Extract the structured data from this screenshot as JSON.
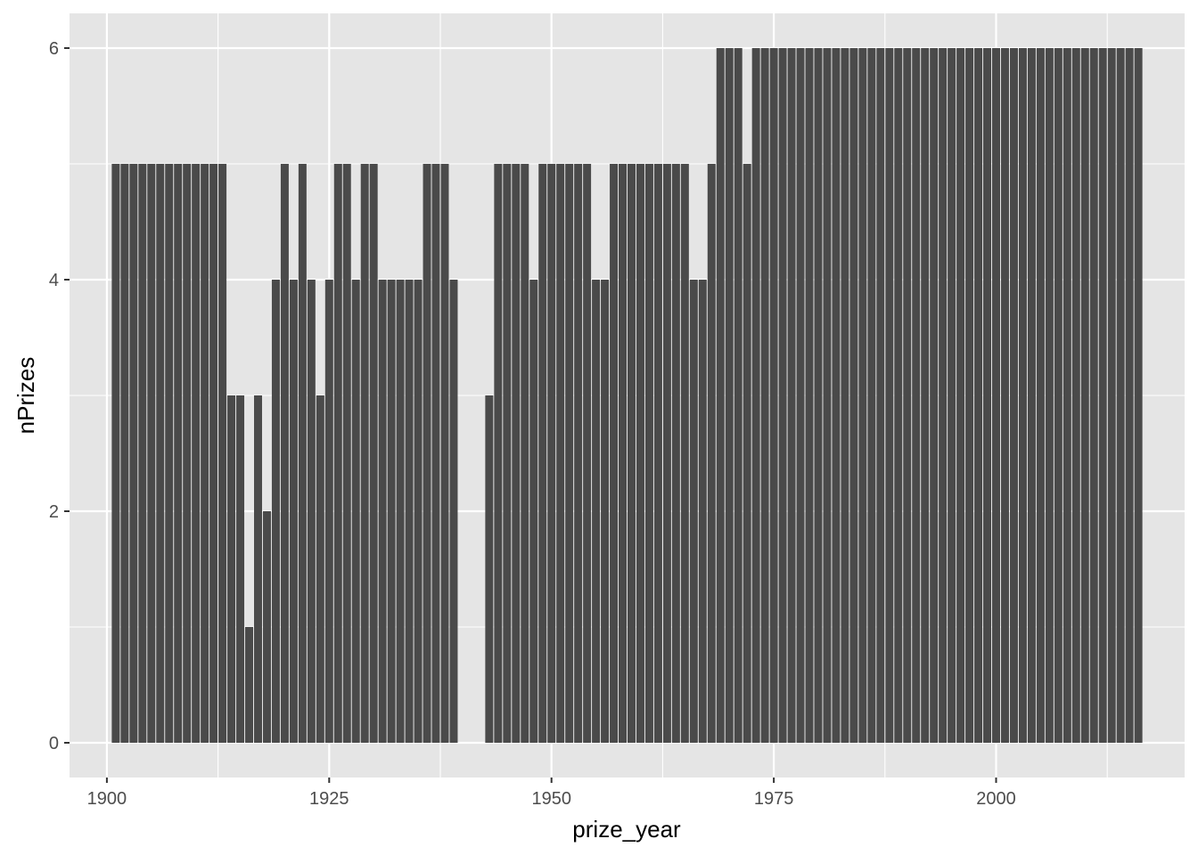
{
  "chart_data": {
    "type": "bar",
    "xlabel": "prize_year",
    "ylabel": "nPrizes",
    "xlim": [
      1895.8,
      2021.2
    ],
    "ylim": [
      -0.3,
      6.3
    ],
    "x_ticks": [
      1900,
      1925,
      1950,
      1975,
      2000
    ],
    "y_ticks": [
      0,
      2,
      4,
      6
    ],
    "x_tick_labels": [
      "1900",
      "1925",
      "1950",
      "1975",
      "2000"
    ],
    "y_tick_labels": [
      "0",
      "2",
      "4",
      "6"
    ],
    "grid": true,
    "colors": {
      "panel": "#e5e5e5",
      "grid": "#ffffff",
      "bar": "#4a4a4a",
      "tick_text": "#4d4d4d",
      "tick_mark": "#333333"
    },
    "x": [
      1901,
      1902,
      1903,
      1904,
      1905,
      1906,
      1907,
      1908,
      1909,
      1910,
      1911,
      1912,
      1913,
      1914,
      1915,
      1916,
      1917,
      1918,
      1919,
      1920,
      1921,
      1922,
      1923,
      1924,
      1925,
      1926,
      1927,
      1928,
      1929,
      1930,
      1931,
      1932,
      1933,
      1934,
      1935,
      1936,
      1937,
      1938,
      1939,
      1940,
      1941,
      1942,
      1943,
      1944,
      1945,
      1946,
      1947,
      1948,
      1949,
      1950,
      1951,
      1952,
      1953,
      1954,
      1955,
      1956,
      1957,
      1958,
      1959,
      1960,
      1961,
      1962,
      1963,
      1964,
      1965,
      1966,
      1967,
      1968,
      1969,
      1970,
      1971,
      1972,
      1973,
      1974,
      1975,
      1976,
      1977,
      1978,
      1979,
      1980,
      1981,
      1982,
      1983,
      1984,
      1985,
      1986,
      1987,
      1988,
      1989,
      1990,
      1991,
      1992,
      1993,
      1994,
      1995,
      1996,
      1997,
      1998,
      1999,
      2000,
      2001,
      2002,
      2003,
      2004,
      2005,
      2006,
      2007,
      2008,
      2009,
      2010,
      2011,
      2012,
      2013,
      2014,
      2015,
      2016
    ],
    "values": [
      5,
      5,
      5,
      5,
      5,
      5,
      5,
      5,
      5,
      5,
      5,
      5,
      5,
      3,
      3,
      1,
      3,
      2,
      4,
      5,
      4,
      5,
      4,
      3,
      4,
      5,
      5,
      4,
      5,
      5,
      4,
      4,
      4,
      4,
      4,
      5,
      5,
      5,
      4,
      0,
      0,
      0,
      3,
      5,
      5,
      5,
      5,
      4,
      5,
      5,
      5,
      5,
      5,
      5,
      4,
      4,
      5,
      5,
      5,
      5,
      5,
      5,
      5,
      5,
      5,
      4,
      4,
      5,
      6,
      6,
      6,
      5,
      6,
      6,
      6,
      6,
      6,
      6,
      6,
      6,
      6,
      6,
      6,
      6,
      6,
      6,
      6,
      6,
      6,
      6,
      6,
      6,
      6,
      6,
      6,
      6,
      6,
      6,
      6,
      6,
      6,
      6,
      6,
      6,
      6,
      6,
      6,
      6,
      6,
      6,
      6,
      6,
      6,
      6,
      6,
      6
    ]
  }
}
